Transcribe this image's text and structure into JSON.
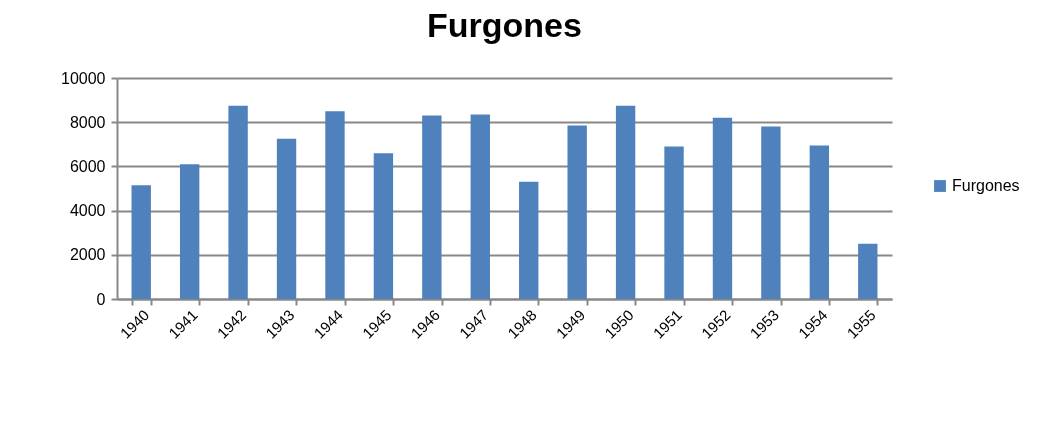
{
  "chart_data": {
    "type": "bar",
    "title": "Furgones",
    "categories": [
      "1940",
      "1941",
      "1942",
      "1943",
      "1944",
      "1945",
      "1946",
      "1947",
      "1948",
      "1949",
      "1950",
      "1951",
      "1952",
      "1953",
      "1954",
      "1955"
    ],
    "series": [
      {
        "name": "Furgones",
        "color": "#4f81bd",
        "values": [
          5150,
          6100,
          8750,
          7250,
          8500,
          6600,
          8300,
          8350,
          5300,
          7850,
          8750,
          6900,
          8200,
          7800,
          6950,
          2500
        ]
      }
    ],
    "ylim": [
      0,
      10000
    ],
    "yticks": [
      0,
      2000,
      4000,
      6000,
      8000,
      10000
    ],
    "grid": "y",
    "legend": "right"
  }
}
